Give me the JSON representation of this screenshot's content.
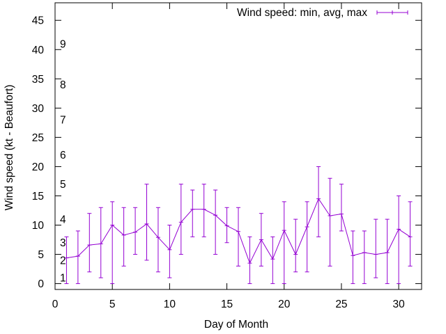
{
  "chart_data": {
    "type": "line",
    "title": "",
    "xlabel": "Day of Month",
    "ylabel": "Wind speed (kt - Beaufort)",
    "xlim": [
      0,
      32
    ],
    "ylim": [
      -1,
      48
    ],
    "x_ticks": [
      0,
      5,
      10,
      15,
      20,
      25,
      30
    ],
    "y_ticks": [
      0,
      5,
      10,
      15,
      20,
      25,
      30,
      35,
      40,
      45
    ],
    "grid": false,
    "legend_position": "top-right",
    "beaufort_scale": [
      {
        "label": "1",
        "y": 1
      },
      {
        "label": "2",
        "y": 4
      },
      {
        "label": "3",
        "y": 7
      },
      {
        "label": "4",
        "y": 11
      },
      {
        "label": "5",
        "y": 17
      },
      {
        "label": "6",
        "y": 22
      },
      {
        "label": "7",
        "y": 28
      },
      {
        "label": "8",
        "y": 34
      },
      {
        "label": "9",
        "y": 41
      }
    ],
    "series": [
      {
        "name": "Wind speed: min, avg, max",
        "color": "#9400d3",
        "x": [
          1,
          2,
          3,
          4,
          5,
          6,
          7,
          8,
          9,
          10,
          11,
          12,
          13,
          14,
          15,
          16,
          17,
          18,
          19,
          20,
          21,
          22,
          23,
          24,
          25,
          26,
          27,
          28,
          29,
          30,
          31
        ],
        "avg": [
          4.4,
          4.7,
          6.6,
          6.8,
          10.0,
          8.3,
          8.8,
          10.2,
          7.9,
          5.8,
          10.5,
          12.7,
          12.7,
          11.7,
          9.9,
          8.9,
          3.5,
          7.5,
          4.2,
          9.1,
          5.0,
          9.7,
          14.5,
          11.6,
          11.9,
          4.8,
          5.3,
          5.0,
          5.3,
          9.3,
          8.0
        ],
        "min": [
          0,
          0,
          2,
          1,
          0,
          3,
          5,
          4,
          2,
          1,
          5,
          8,
          8,
          5,
          7,
          3,
          0,
          3,
          0,
          0,
          2,
          2,
          8,
          3,
          9,
          0,
          0,
          1,
          0,
          0,
          3
        ],
        "max": [
          8,
          9,
          12,
          13,
          14,
          13,
          13,
          17,
          13,
          10,
          17,
          16,
          17,
          16,
          13,
          13,
          8,
          12,
          8,
          14,
          11,
          14,
          20,
          18,
          17,
          9,
          9,
          11,
          11,
          15,
          14
        ]
      }
    ]
  }
}
